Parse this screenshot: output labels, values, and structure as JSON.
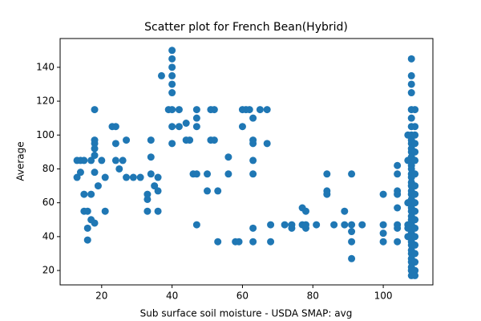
{
  "chart_data": {
    "type": "scatter",
    "title": "Scatter plot for French Bean(Hybrid)",
    "x_label": "Sub surface soil moisture - USDA SMAP: avg",
    "y_label": "Average",
    "color": "#1f77b4",
    "xlim": [
      8.2,
      114.1
    ],
    "ylim": [
      11.5,
      157
    ],
    "xticks": [
      20,
      40,
      60,
      80,
      100
    ],
    "yticks": [
      20,
      40,
      60,
      80,
      100,
      120,
      140
    ],
    "x": [
      13,
      13,
      14,
      14,
      15,
      15,
      15,
      16,
      16,
      16,
      17,
      17,
      17,
      18,
      18,
      18,
      18,
      18,
      18,
      18,
      19,
      20,
      21,
      21,
      23,
      24,
      24,
      24,
      25,
      26,
      27,
      27,
      29,
      31,
      33,
      33,
      33,
      34,
      34,
      34,
      35,
      36,
      36,
      36,
      37,
      39,
      40,
      40,
      40,
      40,
      40,
      40,
      40,
      40,
      40,
      42,
      42,
      44,
      44,
      45,
      46,
      47,
      47,
      47,
      47,
      47,
      50,
      50,
      51,
      51,
      52,
      52,
      53,
      53,
      56,
      56,
      58,
      59,
      60,
      60,
      61,
      62,
      63,
      63,
      63,
      63,
      63,
      63,
      63,
      65,
      67,
      67,
      68,
      68,
      72,
      74,
      74,
      77,
      77,
      78,
      78,
      78,
      81,
      84,
      84,
      84,
      86,
      89,
      89,
      91,
      91,
      91,
      91,
      91,
      94,
      100,
      100,
      100,
      100,
      104,
      104,
      104,
      104,
      104,
      104,
      104,
      104,
      108,
      108,
      108,
      108,
      108,
      108,
      108,
      108,
      108,
      108,
      108,
      108,
      108,
      108,
      108,
      108,
      108,
      108,
      108,
      108,
      108,
      108,
      108,
      108,
      108,
      108,
      108,
      108,
      108,
      108,
      108,
      108,
      108,
      108,
      108,
      108,
      108,
      108,
      108,
      108,
      108,
      109,
      109,
      109,
      109,
      109,
      109,
      109,
      109,
      109,
      109,
      109,
      109,
      109,
      109,
      109,
      109,
      109,
      109,
      109,
      107,
      107,
      107,
      107,
      107,
      107
    ],
    "values": [
      85,
      75,
      78,
      85,
      85,
      65,
      55,
      45,
      38,
      55,
      50,
      65,
      85,
      95,
      97,
      88,
      92,
      78,
      48,
      115,
      70,
      85,
      75,
      55,
      105,
      105,
      95,
      85,
      80,
      85,
      75,
      97,
      75,
      75,
      62,
      65,
      55,
      97,
      87,
      77,
      70,
      75,
      55,
      67,
      135,
      115,
      150,
      145,
      140,
      135,
      130,
      125,
      115,
      105,
      95,
      115,
      105,
      107,
      97,
      97,
      77,
      115,
      110,
      105,
      77,
      47,
      77,
      67,
      97,
      115,
      115,
      97,
      37,
      67,
      87,
      77,
      37,
      37,
      105,
      115,
      115,
      115,
      110,
      97,
      95,
      85,
      77,
      45,
      37,
      115,
      115,
      95,
      47,
      37,
      47,
      45,
      47,
      57,
      47,
      55,
      45,
      47,
      47,
      77,
      67,
      65,
      47,
      55,
      47,
      77,
      47,
      43,
      37,
      27,
      47,
      65,
      47,
      42,
      37,
      82,
      77,
      67,
      65,
      57,
      47,
      45,
      37,
      145,
      135,
      130,
      125,
      115,
      110,
      105,
      100,
      97,
      95,
      92,
      90,
      87,
      85,
      82,
      80,
      77,
      75,
      72,
      70,
      67,
      65,
      62,
      60,
      57,
      55,
      52,
      50,
      47,
      45,
      42,
      40,
      37,
      35,
      32,
      30,
      27,
      25,
      22,
      20,
      17,
      115,
      105,
      100,
      95,
      90,
      85,
      77,
      70,
      65,
      60,
      55,
      50,
      45,
      40,
      35,
      30,
      25,
      20,
      17,
      100,
      85,
      60,
      47,
      45,
      40
    ]
  }
}
